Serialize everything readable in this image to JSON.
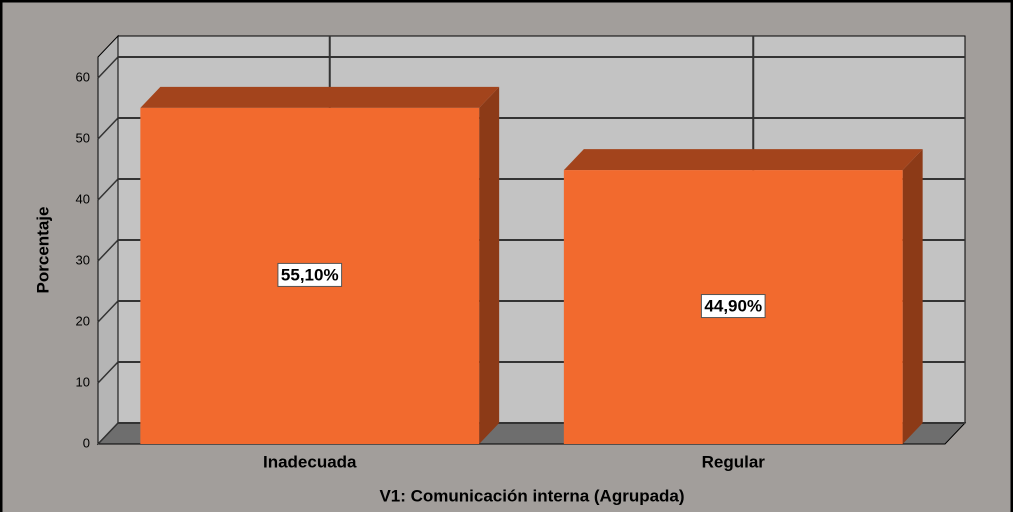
{
  "chart_data": {
    "type": "bar3d",
    "x_label": "V1: Comunicación interna (Agrupada)",
    "y_label": "Porcentaje",
    "categories": [
      "Inadecuada",
      "Regular"
    ],
    "values": [
      55.1,
      44.9
    ],
    "value_labels": [
      "55,10%",
      "44,90%"
    ],
    "color": "#f26a2e",
    "ylim": [
      0,
      60
    ],
    "yticks": [
      0,
      10,
      20,
      30,
      40,
      50,
      60
    ],
    "grid": true
  }
}
